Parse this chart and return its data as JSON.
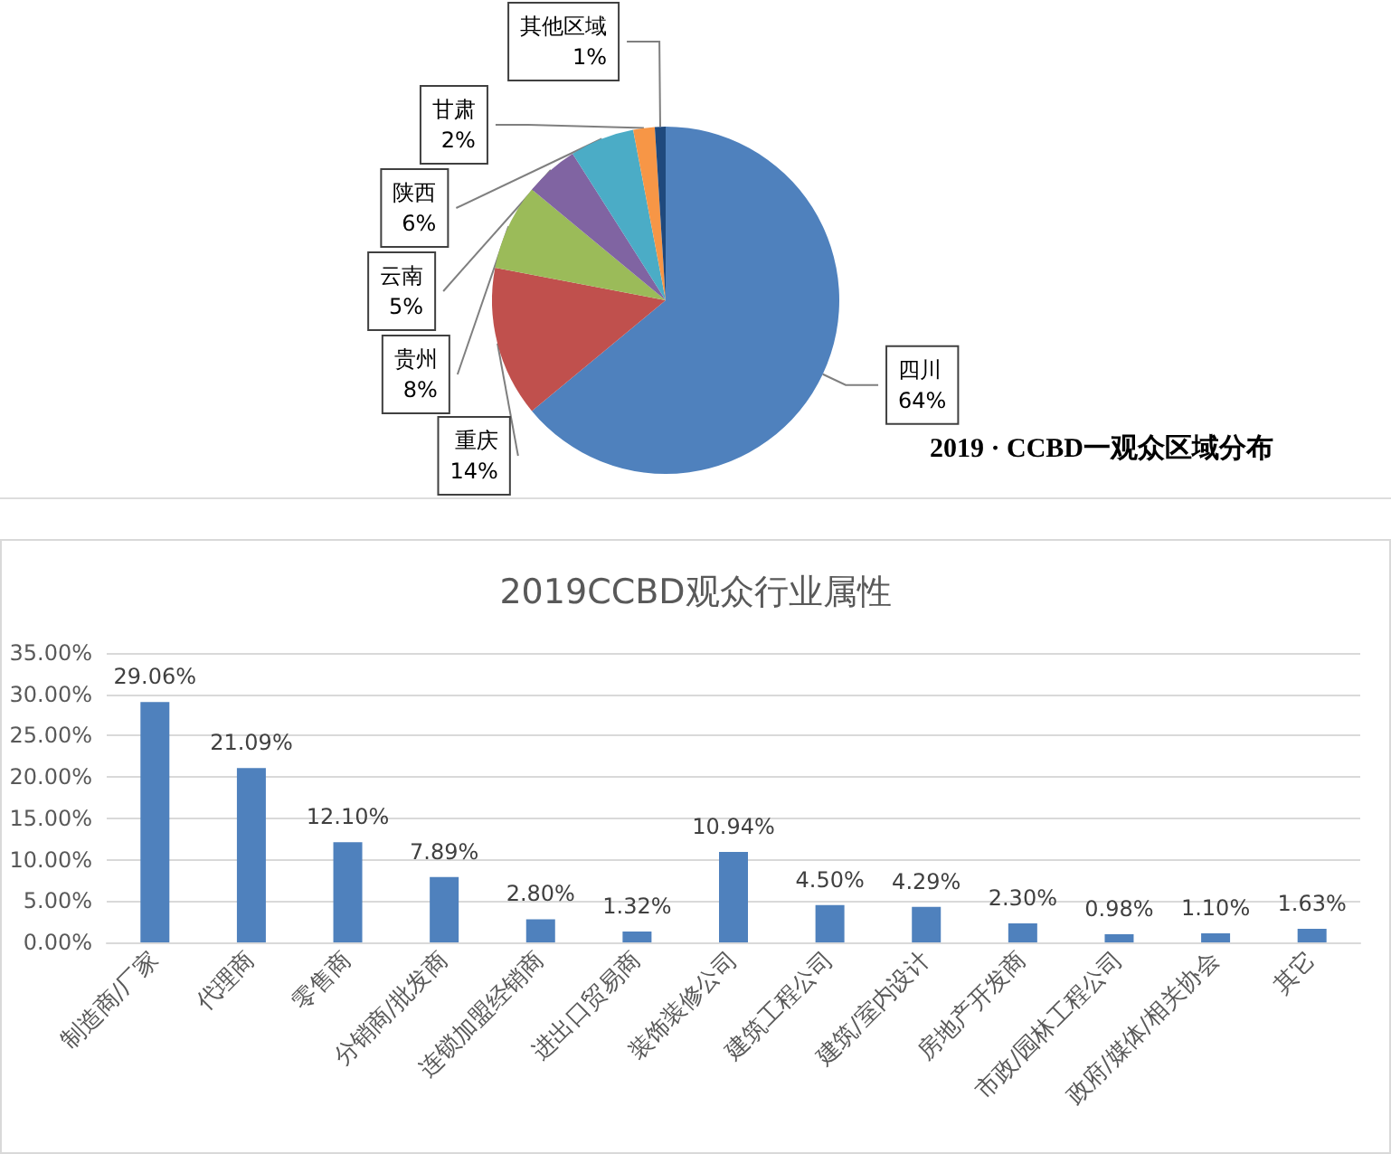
{
  "chart_data": [
    {
      "type": "pie",
      "title": "2019 · CCBD一观众区域分布",
      "categories": [
        "四川",
        "重庆",
        "贵州",
        "云南",
        "陕西",
        "甘肃",
        "其他区域"
      ],
      "values": [
        64,
        14,
        8,
        5,
        6,
        2,
        1
      ],
      "colors": [
        "#4f81bd",
        "#c0504d",
        "#9bbb59",
        "#8064a2",
        "#4bacc6",
        "#f79646",
        "#1f497d"
      ],
      "value_labels": [
        "64%",
        "14%",
        "8%",
        "5%",
        "6%",
        "2%",
        "1%"
      ],
      "legend": false
    },
    {
      "type": "bar",
      "title": "2019CCBD观众行业属性",
      "categories": [
        "制造商/厂家",
        "代理商",
        "零售商",
        "分销商/批发商",
        "连锁加盟经销商",
        "进出口贸易商",
        "装饰装修公司",
        "建筑工程公司",
        "建筑/室内设计",
        "房地产开发商",
        "市政/园林工程公司",
        "政府/媒体/相关协会",
        "其它"
      ],
      "values": [
        29.06,
        21.09,
        12.1,
        7.89,
        2.8,
        1.32,
        10.94,
        4.5,
        4.29,
        2.3,
        0.98,
        1.1,
        1.63
      ],
      "color": "#4f81bd",
      "value_labels": [
        "29.06%",
        "21.09%",
        "12.10%",
        "7.89%",
        "2.80%",
        "1.32%",
        "10.94%",
        "4.50%",
        "4.29%",
        "2.30%",
        "0.98%",
        "1.10%",
        "1.63%"
      ],
      "ylim": [
        0,
        35
      ],
      "yticks": [
        {
          "value": 0,
          "label": "0.00%"
        },
        {
          "value": 5,
          "label": "5.00%"
        },
        {
          "value": 10,
          "label": "10.00%"
        },
        {
          "value": 15,
          "label": "15.00%"
        },
        {
          "value": 20,
          "label": "20.00%"
        },
        {
          "value": 25,
          "label": "25.00%"
        },
        {
          "value": 30,
          "label": "30.00%"
        },
        {
          "value": 35,
          "label": "35.00%"
        }
      ],
      "grid": "y",
      "legend": false
    }
  ]
}
